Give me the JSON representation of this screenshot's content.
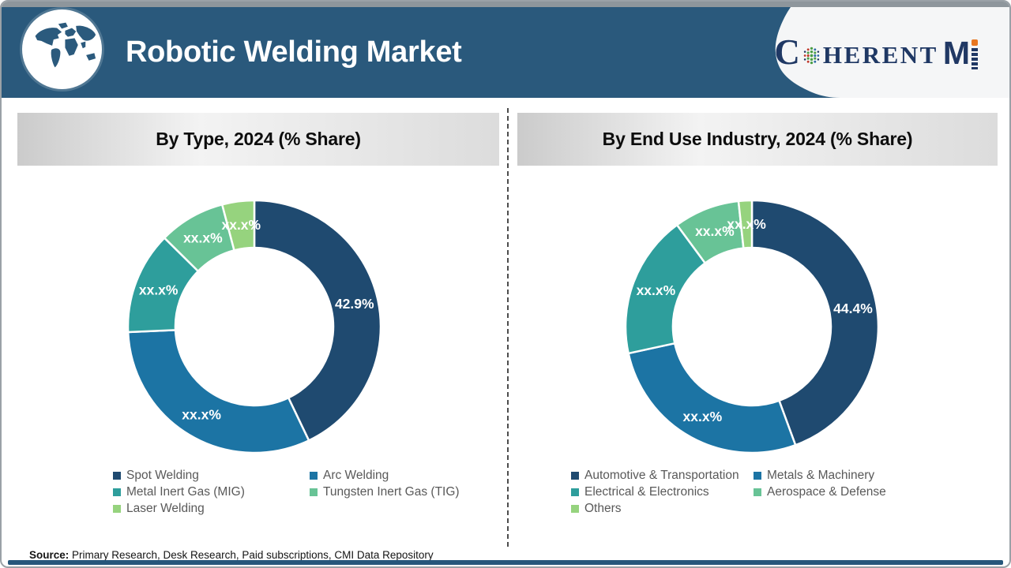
{
  "header": {
    "title": "Robotic Welding Market"
  },
  "logo": {
    "c": "C",
    "herent": "HERENT",
    "m": "M",
    "alt": "CoherentMI"
  },
  "panels": [
    {
      "title": "By Type, 2024 (% Share)"
    },
    {
      "title": "By End Use Industry, 2024 (% Share)"
    }
  ],
  "source": {
    "label": "Source:",
    "text": " Primary Research, Desk Research, Paid subscriptions, CMI Data Repository"
  },
  "colors": {
    "header_bg": "#2a597c",
    "logo_navy": "#1f3864",
    "logo_orange": "#e87722",
    "legend_text": "#595959",
    "bottom_bar": "#26567b",
    "title_bar_gray": "#d9d9d9"
  },
  "chart_data": [
    {
      "type": "pie",
      "subtype": "donut",
      "title": "By Type, 2024 (% Share)",
      "start_angle_deg": 0,
      "direction": "clockwise",
      "inner_radius_ratio": 0.625,
      "legend_position": "bottom",
      "segments": [
        {
          "label": "Spot Welding",
          "display_value": "42.9%",
          "value": 42.9,
          "color": "#1f4a70"
        },
        {
          "label": "Arc Welding",
          "display_value": "xx.x%",
          "value": 31.4,
          "color": "#1c74a4"
        },
        {
          "label": "Metal Inert Gas (MIG)",
          "display_value": "xx.x%",
          "value": 13.1,
          "color": "#2e9e9c"
        },
        {
          "label": "Tungsten Inert Gas (TIG)",
          "display_value": "xx.x%",
          "value": 8.5,
          "color": "#68c396"
        },
        {
          "label": "Laser Welding",
          "display_value": "xx.x%",
          "value": 4.1,
          "color": "#96d37e"
        }
      ]
    },
    {
      "type": "pie",
      "subtype": "donut",
      "title": "By End Use Industry, 2024 (% Share)",
      "start_angle_deg": 0,
      "direction": "clockwise",
      "inner_radius_ratio": 0.625,
      "legend_position": "bottom",
      "segments": [
        {
          "label": "Automotive & Transportation",
          "display_value": "44.4%",
          "value": 44.4,
          "color": "#1f4a70"
        },
        {
          "label": "Metals & Machinery",
          "display_value": "xx.x%",
          "value": 27.2,
          "color": "#1c74a4"
        },
        {
          "label": "Electrical & Electronics",
          "display_value": "xx.x%",
          "value": 18.3,
          "color": "#2e9e9c"
        },
        {
          "label": "Aerospace & Defense",
          "display_value": "xx.x%",
          "value": 8.4,
          "color": "#68c396"
        },
        {
          "label": "Others",
          "display_value": "xx.x%",
          "value": 1.7,
          "color": "#96d37e"
        }
      ]
    }
  ]
}
